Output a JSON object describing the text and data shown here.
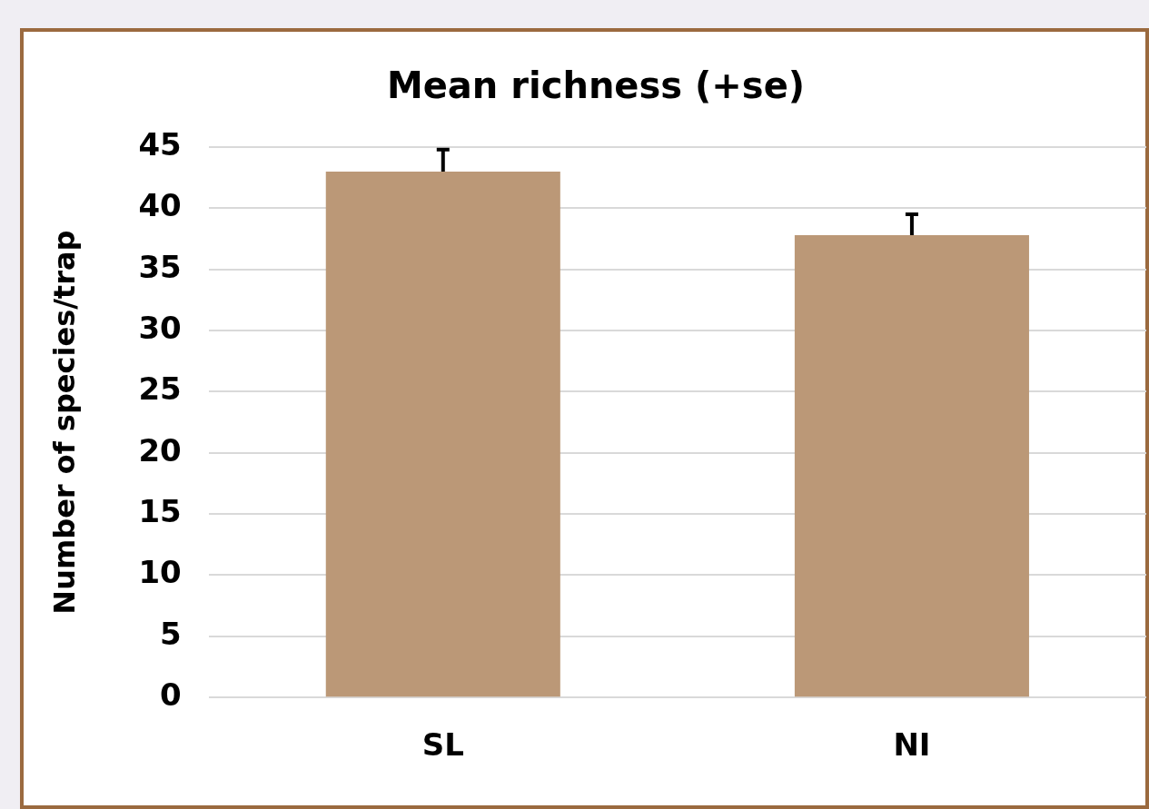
{
  "chart_data": {
    "type": "bar",
    "title": "Mean richness (+se)",
    "ylabel": "Number of species/trap",
    "categories": [
      "SL",
      "NI"
    ],
    "values": [
      43,
      37.8
    ],
    "errors": [
      [
        43,
        44.8
      ],
      [
        37.8,
        39.5
      ]
    ],
    "color": "#bb9877",
    "ylim": [
      0,
      45
    ],
    "yticks": [
      0,
      5,
      10,
      15,
      20,
      25,
      30,
      35,
      40,
      45
    ],
    "grid": "y",
    "legend": false
  }
}
